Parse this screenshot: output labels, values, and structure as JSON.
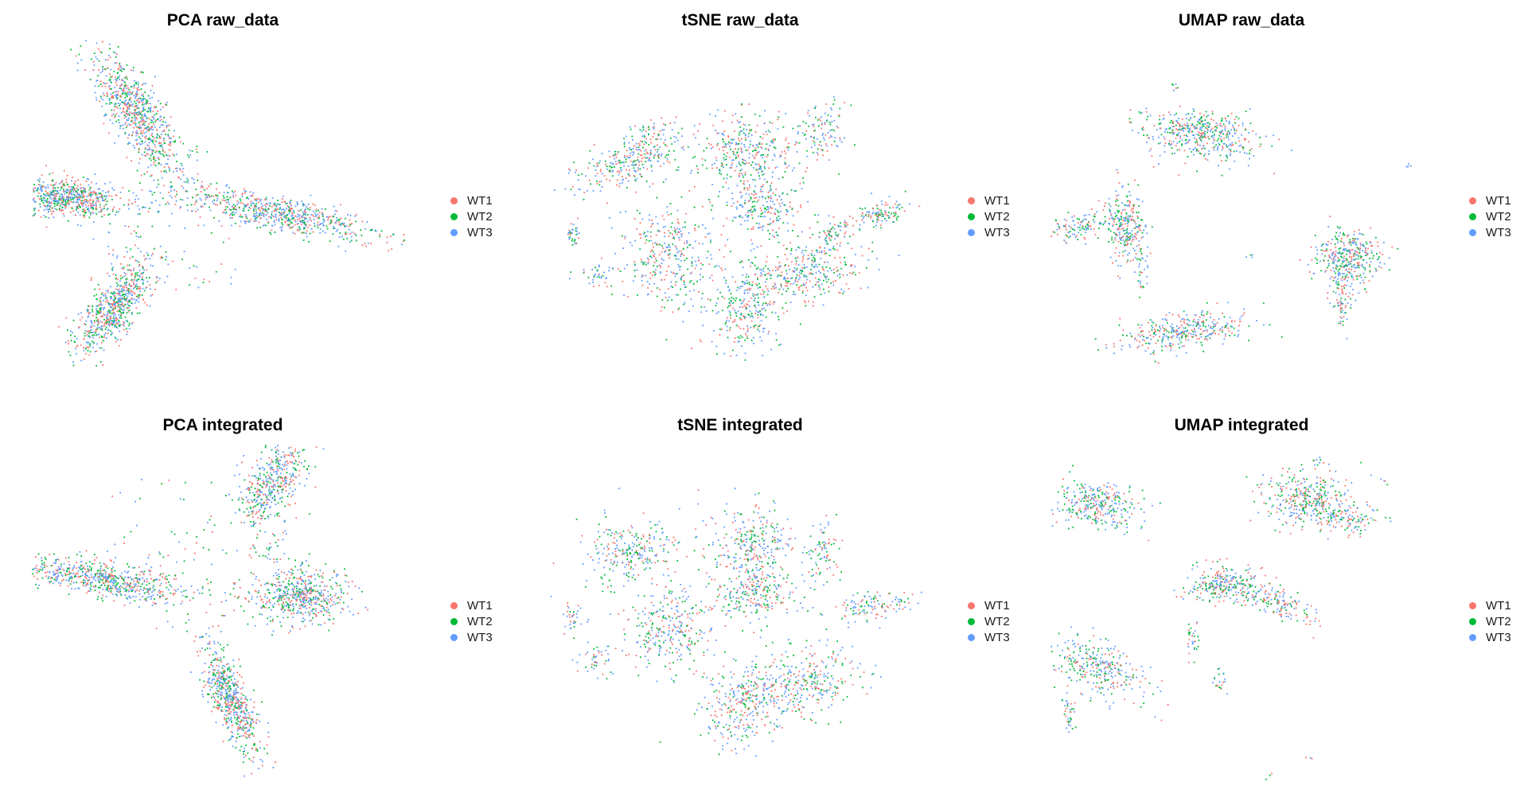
{
  "legend": {
    "entries": [
      {
        "label": "WT1",
        "color": "#F8766D"
      },
      {
        "label": "WT2",
        "color": "#00BA38"
      },
      {
        "label": "WT3",
        "color": "#619CFF"
      }
    ]
  },
  "chart_data": [
    {
      "id": "pca-raw",
      "type": "scatter",
      "title": "PCA raw_data",
      "grid": false,
      "axes_visible": false,
      "legend_placement": "right",
      "series": [
        {
          "name": "WT1"
        },
        {
          "name": "WT2"
        },
        {
          "name": "WT3"
        }
      ],
      "clusters": [
        {
          "x": 0.28,
          "y": 0.22,
          "sx": 0.035,
          "sy": 0.1,
          "rot": -30,
          "n": 700
        },
        {
          "x": 0.09,
          "y": 0.47,
          "sx": 0.07,
          "sy": 0.03,
          "rot": 5,
          "n": 650
        },
        {
          "x": 0.66,
          "y": 0.52,
          "sx": 0.13,
          "sy": 0.025,
          "rot": 14,
          "n": 650
        },
        {
          "x": 0.22,
          "y": 0.8,
          "sx": 0.03,
          "sy": 0.08,
          "rot": 35,
          "n": 650
        }
      ],
      "sparse": [
        {
          "x1": 0.28,
          "y1": 0.3,
          "x2": 0.45,
          "y2": 0.5,
          "n": 60
        },
        {
          "x1": 0.15,
          "y1": 0.47,
          "x2": 0.55,
          "y2": 0.52,
          "n": 50
        },
        {
          "x1": 0.2,
          "y1": 0.55,
          "x2": 0.3,
          "y2": 0.72,
          "n": 40
        },
        {
          "x1": 0.3,
          "y1": 0.55,
          "x2": 0.55,
          "y2": 0.75,
          "n": 30
        }
      ]
    },
    {
      "id": "tsne-raw",
      "type": "scatter",
      "title": "tSNE raw_data",
      "grid": false,
      "axes_visible": false,
      "legend_placement": "right",
      "series": [
        {
          "name": "WT1"
        },
        {
          "name": "WT2"
        },
        {
          "name": "WT3"
        }
      ],
      "clusters": [
        {
          "x": 0.53,
          "y": 0.33,
          "sx": 0.07,
          "sy": 0.06,
          "rot": 0,
          "n": 350
        },
        {
          "x": 0.57,
          "y": 0.5,
          "sx": 0.05,
          "sy": 0.04,
          "rot": 0,
          "n": 200
        },
        {
          "x": 0.32,
          "y": 0.65,
          "sx": 0.06,
          "sy": 0.08,
          "rot": 0,
          "n": 350
        },
        {
          "x": 0.52,
          "y": 0.8,
          "sx": 0.05,
          "sy": 0.07,
          "rot": 20,
          "n": 250
        },
        {
          "x": 0.67,
          "y": 0.7,
          "sx": 0.09,
          "sy": 0.05,
          "rot": -20,
          "n": 350
        },
        {
          "x": 0.2,
          "y": 0.38,
          "sx": 0.08,
          "sy": 0.03,
          "rot": -15,
          "n": 200
        },
        {
          "x": 0.27,
          "y": 0.3,
          "sx": 0.05,
          "sy": 0.03,
          "rot": -30,
          "n": 120
        },
        {
          "x": 0.88,
          "y": 0.52,
          "sx": 0.05,
          "sy": 0.02,
          "rot": -20,
          "n": 120
        },
        {
          "x": 0.73,
          "y": 0.28,
          "sx": 0.03,
          "sy": 0.05,
          "rot": 0,
          "n": 100
        },
        {
          "x": 0.76,
          "y": 0.58,
          "sx": 0.02,
          "sy": 0.02,
          "rot": 0,
          "n": 50
        },
        {
          "x": 0.06,
          "y": 0.58,
          "sx": 0.012,
          "sy": 0.02,
          "rot": 0,
          "n": 35
        },
        {
          "x": 0.13,
          "y": 0.7,
          "sx": 0.025,
          "sy": 0.02,
          "rot": 0,
          "n": 40
        }
      ],
      "sparse": []
    },
    {
      "id": "umap-raw",
      "type": "scatter",
      "title": "UMAP raw_data",
      "grid": false,
      "axes_visible": false,
      "legend_placement": "right",
      "series": [
        {
          "name": "WT1"
        },
        {
          "name": "WT2"
        },
        {
          "name": "WT3"
        }
      ],
      "clusters": [
        {
          "x": 0.4,
          "y": 0.28,
          "sx": 0.075,
          "sy": 0.035,
          "rot": 12,
          "n": 450
        },
        {
          "x": 0.2,
          "y": 0.55,
          "sx": 0.025,
          "sy": 0.05,
          "rot": 0,
          "n": 250
        },
        {
          "x": 0.08,
          "y": 0.56,
          "sx": 0.04,
          "sy": 0.02,
          "rot": -10,
          "n": 120
        },
        {
          "x": 0.8,
          "y": 0.65,
          "sx": 0.045,
          "sy": 0.04,
          "rot": 0,
          "n": 350
        },
        {
          "x": 0.78,
          "y": 0.77,
          "sx": 0.015,
          "sy": 0.04,
          "rot": 0,
          "n": 80
        },
        {
          "x": 0.36,
          "y": 0.87,
          "sx": 0.09,
          "sy": 0.025,
          "rot": -10,
          "n": 350
        },
        {
          "x": 0.24,
          "y": 0.67,
          "sx": 0.01,
          "sy": 0.04,
          "rot": 0,
          "n": 40
        }
      ],
      "sparse": [
        {
          "x1": 0.32,
          "y1": 0.13,
          "x2": 0.34,
          "y2": 0.15,
          "n": 6
        },
        {
          "x1": 0.95,
          "y1": 0.37,
          "x2": 0.97,
          "y2": 0.38,
          "n": 4
        },
        {
          "x1": 0.52,
          "y1": 0.64,
          "x2": 0.54,
          "y2": 0.65,
          "n": 4
        }
      ]
    },
    {
      "id": "pca-integrated",
      "type": "scatter",
      "title": "PCA integrated",
      "grid": false,
      "axes_visible": false,
      "legend_placement": "right",
      "series": [
        {
          "name": "WT1"
        },
        {
          "name": "WT2"
        },
        {
          "name": "WT3"
        }
      ],
      "clusters": [
        {
          "x": 0.64,
          "y": 0.11,
          "sx": 0.035,
          "sy": 0.07,
          "rot": 30,
          "n": 450
        },
        {
          "x": 0.18,
          "y": 0.4,
          "sx": 0.12,
          "sy": 0.025,
          "rot": 10,
          "n": 650
        },
        {
          "x": 0.72,
          "y": 0.45,
          "sx": 0.06,
          "sy": 0.04,
          "rot": 0,
          "n": 550
        },
        {
          "x": 0.53,
          "y": 0.76,
          "sx": 0.025,
          "sy": 0.09,
          "rot": -20,
          "n": 600
        }
      ],
      "sparse": [
        {
          "x1": 0.3,
          "y1": 0.3,
          "x2": 0.62,
          "y2": 0.55,
          "n": 60
        },
        {
          "x1": 0.58,
          "y1": 0.2,
          "x2": 0.68,
          "y2": 0.35,
          "n": 50
        },
        {
          "x1": 0.2,
          "y1": 0.1,
          "x2": 0.5,
          "y2": 0.35,
          "n": 35
        }
      ]
    },
    {
      "id": "tsne-integrated",
      "type": "scatter",
      "title": "tSNE integrated",
      "grid": false,
      "axes_visible": false,
      "legend_placement": "right",
      "series": [
        {
          "name": "WT1"
        },
        {
          "name": "WT2"
        },
        {
          "name": "WT3"
        }
      ],
      "clusters": [
        {
          "x": 0.55,
          "y": 0.3,
          "sx": 0.06,
          "sy": 0.06,
          "rot": 0,
          "n": 300
        },
        {
          "x": 0.55,
          "y": 0.45,
          "sx": 0.05,
          "sy": 0.04,
          "rot": 0,
          "n": 200
        },
        {
          "x": 0.32,
          "y": 0.55,
          "sx": 0.06,
          "sy": 0.07,
          "rot": 0,
          "n": 300
        },
        {
          "x": 0.52,
          "y": 0.77,
          "sx": 0.05,
          "sy": 0.07,
          "rot": 20,
          "n": 250
        },
        {
          "x": 0.66,
          "y": 0.72,
          "sx": 0.09,
          "sy": 0.05,
          "rot": -20,
          "n": 350
        },
        {
          "x": 0.22,
          "y": 0.32,
          "sx": 0.07,
          "sy": 0.05,
          "rot": -20,
          "n": 250
        },
        {
          "x": 0.87,
          "y": 0.48,
          "sx": 0.06,
          "sy": 0.02,
          "rot": -10,
          "n": 120
        },
        {
          "x": 0.73,
          "y": 0.32,
          "sx": 0.02,
          "sy": 0.05,
          "rot": 0,
          "n": 80
        },
        {
          "x": 0.06,
          "y": 0.52,
          "sx": 0.015,
          "sy": 0.02,
          "rot": 0,
          "n": 35
        },
        {
          "x": 0.13,
          "y": 0.65,
          "sx": 0.03,
          "sy": 0.03,
          "rot": 0,
          "n": 45
        }
      ],
      "sparse": []
    },
    {
      "id": "umap-integrated",
      "type": "scatter",
      "title": "UMAP integrated",
      "grid": false,
      "axes_visible": false,
      "legend_placement": "right",
      "series": [
        {
          "name": "WT1"
        },
        {
          "name": "WT2"
        },
        {
          "name": "WT3"
        }
      ],
      "clusters": [
        {
          "x": 0.12,
          "y": 0.18,
          "sx": 0.06,
          "sy": 0.035,
          "rot": 15,
          "n": 300
        },
        {
          "x": 0.68,
          "y": 0.16,
          "sx": 0.06,
          "sy": 0.04,
          "rot": 0,
          "n": 350
        },
        {
          "x": 0.8,
          "y": 0.22,
          "sx": 0.04,
          "sy": 0.02,
          "rot": 0,
          "n": 100
        },
        {
          "x": 0.46,
          "y": 0.42,
          "sx": 0.05,
          "sy": 0.03,
          "rot": 0,
          "n": 250
        },
        {
          "x": 0.6,
          "y": 0.47,
          "sx": 0.06,
          "sy": 0.02,
          "rot": 25,
          "n": 150
        },
        {
          "x": 0.13,
          "y": 0.67,
          "sx": 0.07,
          "sy": 0.04,
          "rot": 25,
          "n": 300
        },
        {
          "x": 0.38,
          "y": 0.58,
          "sx": 0.01,
          "sy": 0.03,
          "rot": 0,
          "n": 30
        },
        {
          "x": 0.45,
          "y": 0.7,
          "sx": 0.01,
          "sy": 0.02,
          "rot": 0,
          "n": 20
        },
        {
          "x": 0.05,
          "y": 0.8,
          "sx": 0.01,
          "sy": 0.04,
          "rot": 0,
          "n": 35
        }
      ],
      "sparse": [
        {
          "x1": 0.7,
          "y1": 0.03,
          "x2": 0.72,
          "y2": 0.06,
          "n": 8
        },
        {
          "x1": 0.88,
          "y1": 0.1,
          "x2": 0.9,
          "y2": 0.12,
          "n": 4
        },
        {
          "x1": 0.57,
          "y1": 0.98,
          "x2": 0.59,
          "y2": 1.0,
          "n": 3
        },
        {
          "x1": 0.68,
          "y1": 0.93,
          "x2": 0.7,
          "y2": 0.94,
          "n": 3
        }
      ]
    }
  ]
}
